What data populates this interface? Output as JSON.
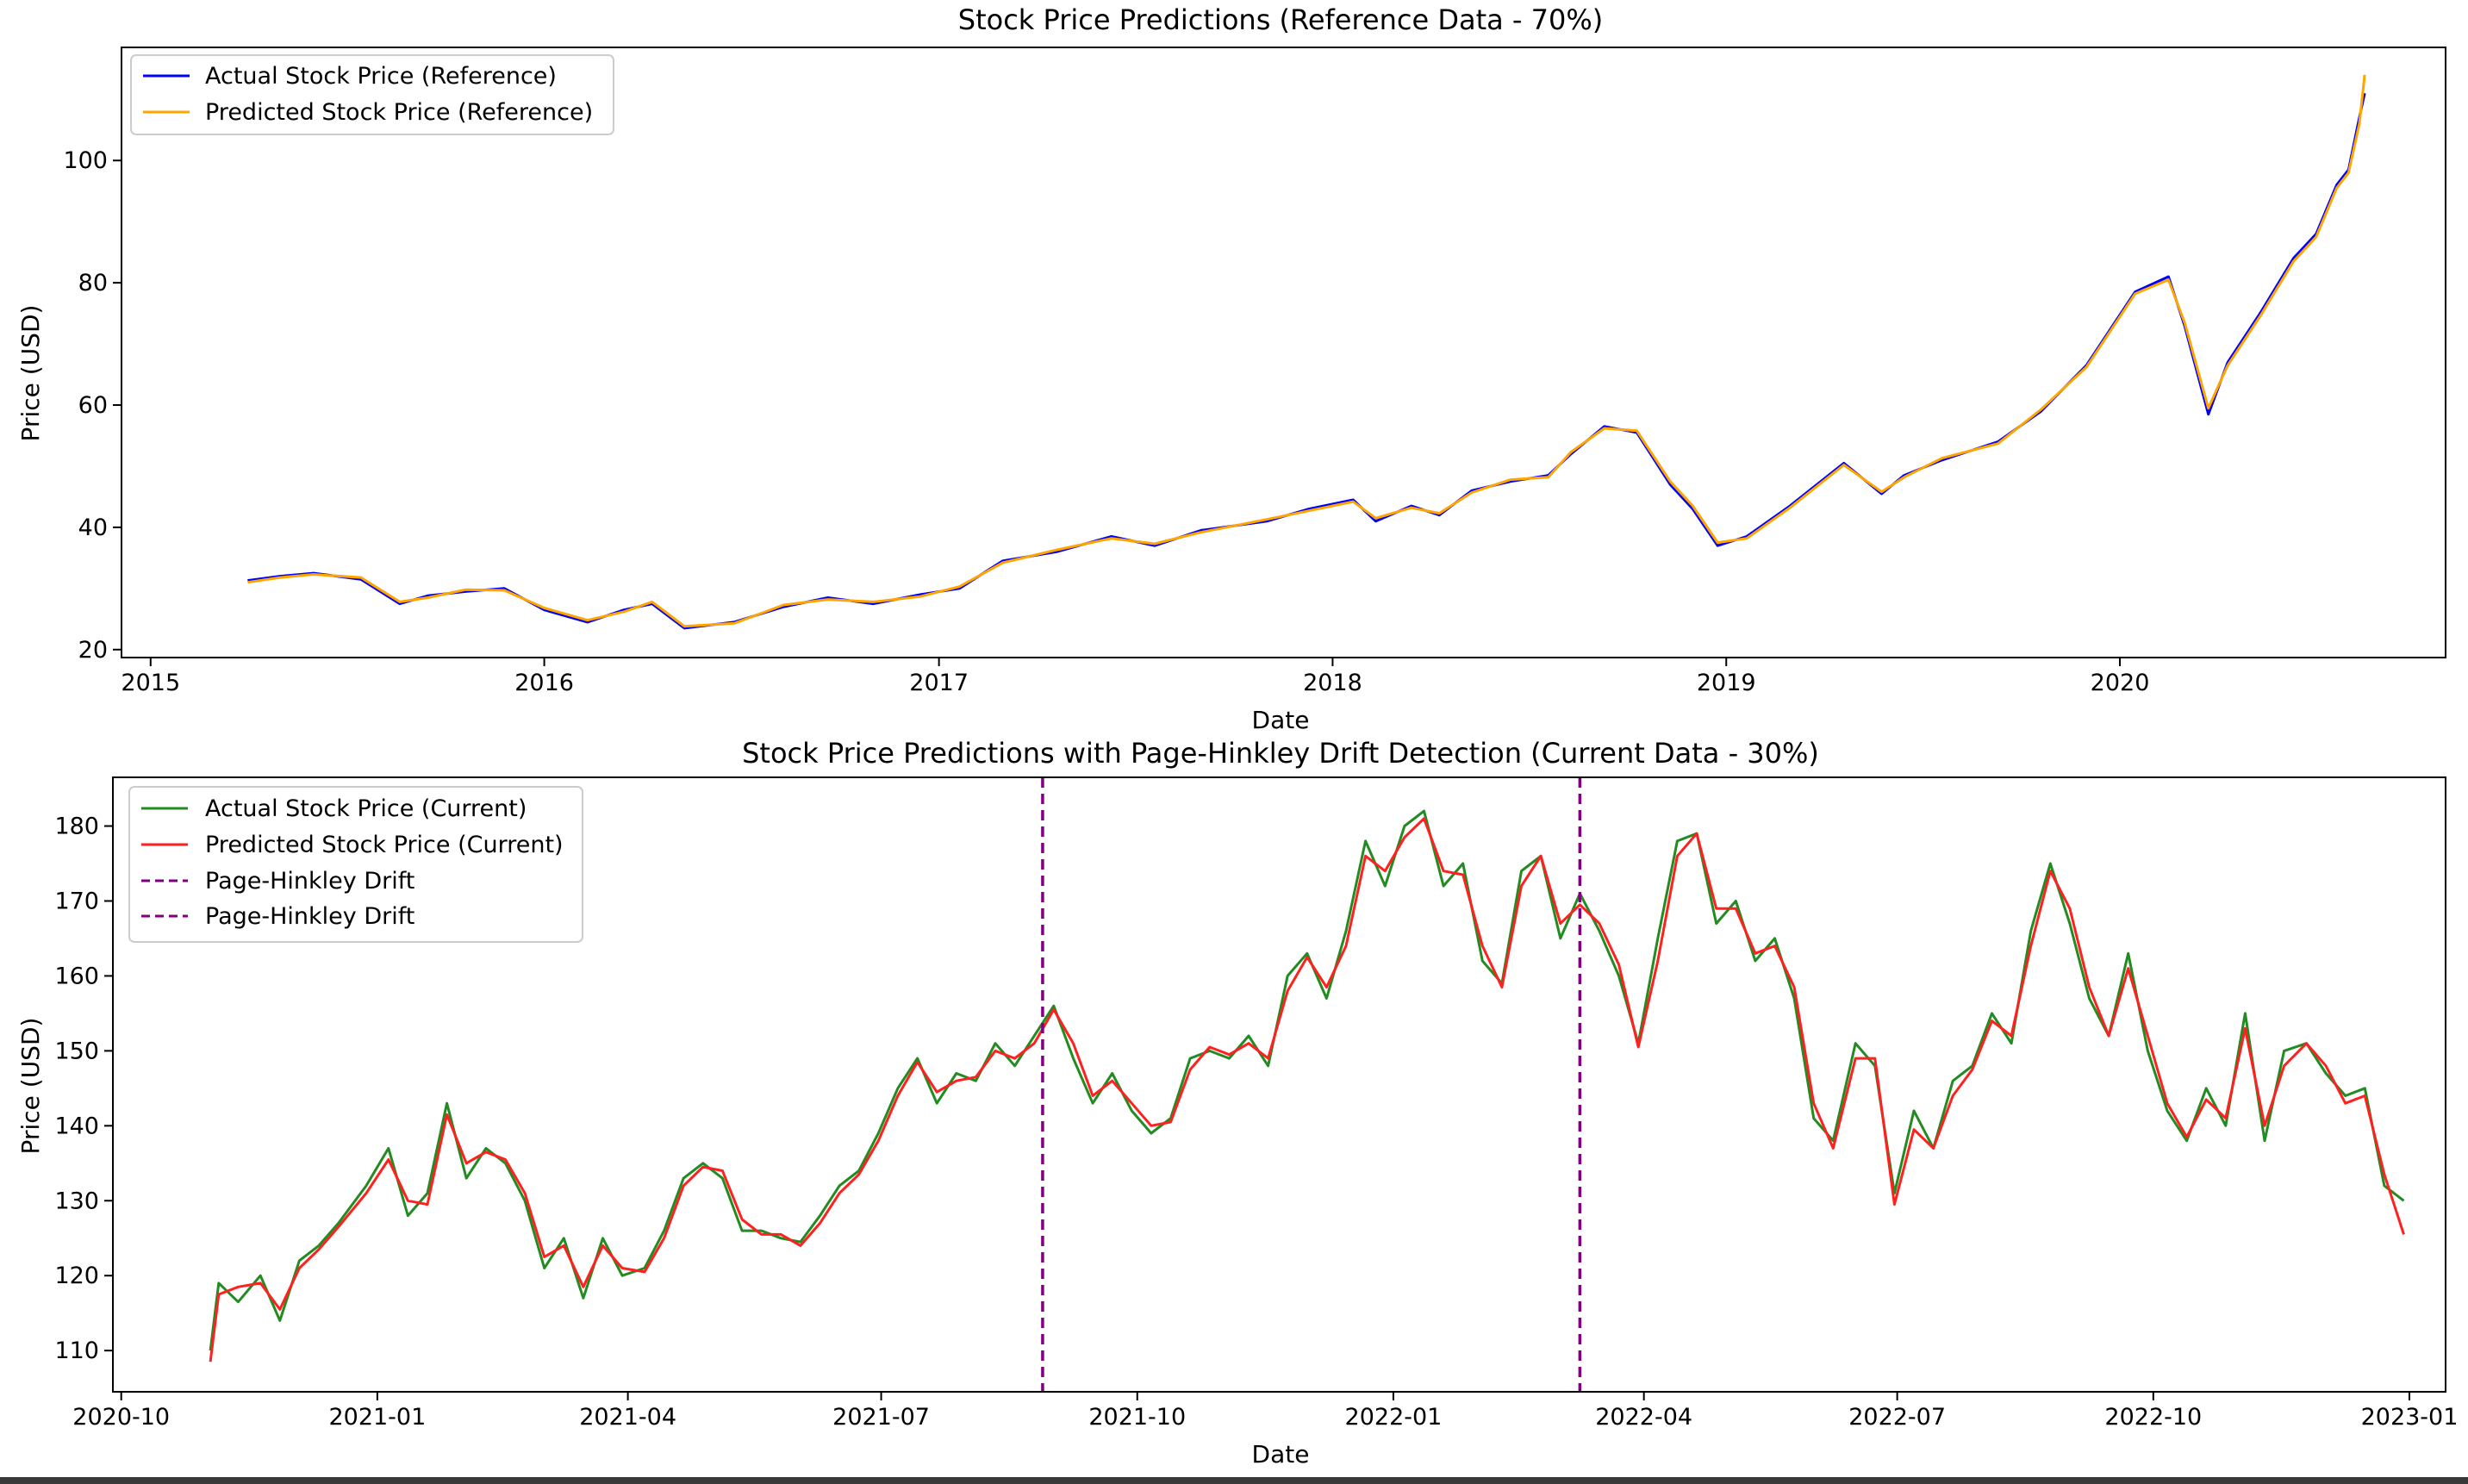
{
  "chart_data": [
    {
      "type": "line",
      "title": "Stock Price Predictions (Reference Data - 70%)",
      "xlabel": "Date",
      "ylabel": "Price (USD)",
      "x_scale": "date",
      "xlim": [
        "2014-12-05",
        "2020-10-29"
      ],
      "ylim": [
        18.7,
        118.5
      ],
      "x_ticks": [
        "2015-01-01",
        "2016-01-01",
        "2017-01-01",
        "2018-01-01",
        "2019-01-01",
        "2020-01-01"
      ],
      "x_tick_labels": [
        "2015",
        "2016",
        "2017",
        "2018",
        "2019",
        "2020"
      ],
      "y_ticks": [
        20,
        40,
        60,
        80,
        100
      ],
      "y_tick_labels": [
        "20",
        "40",
        "60",
        "80",
        "100"
      ],
      "grid": false,
      "legend_position": "upper-left",
      "series": [
        {
          "name": "Actual Stock Price (Reference)",
          "color": "#0000ff",
          "x": [
            "2015-04-01",
            "2015-05-01",
            "2015-06-01",
            "2015-07-15",
            "2015-08-20",
            "2015-09-15",
            "2015-10-20",
            "2015-11-25",
            "2016-01-01",
            "2016-02-10",
            "2016-03-15",
            "2016-04-10",
            "2016-05-10",
            "2016-06-25",
            "2016-08-10",
            "2016-09-20",
            "2016-11-01",
            "2016-12-15",
            "2017-01-20",
            "2017-03-01",
            "2017-04-20",
            "2017-06-10",
            "2017-07-20",
            "2017-09-01",
            "2017-11-01",
            "2017-12-10",
            "2018-01-20",
            "2018-02-10",
            "2018-03-15",
            "2018-04-10",
            "2018-05-10",
            "2018-06-15",
            "2018-07-20",
            "2018-08-10",
            "2018-09-10",
            "2018-10-10",
            "2018-11-10",
            "2018-12-01",
            "2018-12-24",
            "2019-01-20",
            "2019-03-01",
            "2019-04-20",
            "2019-05-25",
            "2019-06-15",
            "2019-07-20",
            "2019-09-10",
            "2019-10-20",
            "2019-12-01",
            "2020-01-15",
            "2020-02-15",
            "2020-03-01",
            "2020-03-23",
            "2020-04-10",
            "2020-05-10",
            "2020-06-10",
            "2020-07-01",
            "2020-07-20",
            "2020-07-31",
            "2020-08-10",
            "2020-08-15"
          ],
          "values": [
            31.3,
            32.0,
            32.5,
            31.5,
            27.5,
            28.8,
            29.5,
            30.0,
            26.5,
            24.5,
            26.5,
            27.5,
            23.5,
            24.5,
            27.0,
            28.5,
            27.5,
            29.0,
            30.0,
            34.5,
            36.0,
            38.5,
            37.0,
            39.5,
            41.0,
            43.0,
            44.5,
            41.0,
            43.5,
            42.0,
            46.0,
            47.5,
            48.5,
            52.0,
            56.5,
            55.5,
            47.0,
            43.0,
            37.0,
            38.5,
            43.5,
            50.5,
            45.5,
            48.5,
            51.0,
            54.0,
            59.0,
            66.5,
            78.5,
            81.0,
            73.0,
            58.5,
            67.0,
            75.0,
            84.0,
            88.0,
            96.0,
            98.5,
            107.0,
            111.0
          ]
        },
        {
          "name": "Predicted Stock Price (Reference)",
          "color": "#ffa500",
          "x": [
            "2015-04-01",
            "2015-05-01",
            "2015-06-01",
            "2015-07-15",
            "2015-08-20",
            "2015-09-15",
            "2015-10-20",
            "2015-11-25",
            "2016-01-01",
            "2016-02-10",
            "2016-03-15",
            "2016-04-10",
            "2016-05-10",
            "2016-06-25",
            "2016-08-10",
            "2016-09-20",
            "2016-11-01",
            "2016-12-15",
            "2017-01-20",
            "2017-03-01",
            "2017-04-20",
            "2017-06-10",
            "2017-07-20",
            "2017-09-01",
            "2017-11-01",
            "2017-12-10",
            "2018-01-20",
            "2018-02-10",
            "2018-03-15",
            "2018-04-10",
            "2018-05-10",
            "2018-06-15",
            "2018-07-20",
            "2018-08-10",
            "2018-09-10",
            "2018-10-10",
            "2018-11-10",
            "2018-12-01",
            "2018-12-24",
            "2019-01-20",
            "2019-03-01",
            "2019-04-20",
            "2019-05-25",
            "2019-06-15",
            "2019-07-20",
            "2019-09-10",
            "2019-10-20",
            "2019-12-01",
            "2020-01-15",
            "2020-02-15",
            "2020-03-01",
            "2020-03-23",
            "2020-04-10",
            "2020-05-10",
            "2020-06-10",
            "2020-07-01",
            "2020-07-20",
            "2020-07-31",
            "2020-08-10",
            "2020-08-15"
          ],
          "values": [
            31.0,
            31.8,
            32.3,
            31.8,
            27.8,
            28.5,
            29.8,
            29.7,
            26.8,
            24.8,
            26.2,
            27.8,
            23.8,
            24.3,
            27.3,
            28.2,
            27.8,
            28.7,
            30.3,
            34.2,
            36.3,
            38.2,
            37.3,
            39.2,
            41.3,
            42.7,
            44.2,
            41.5,
            43.2,
            42.3,
            45.7,
            47.8,
            48.2,
            52.3,
            56.2,
            55.8,
            47.5,
            43.5,
            37.5,
            38.2,
            43.2,
            50.2,
            45.8,
            48.2,
            51.3,
            53.7,
            59.3,
            66.2,
            78.2,
            80.5,
            73.5,
            59.5,
            66.5,
            74.5,
            83.5,
            87.5,
            95.5,
            98.0,
            106.0,
            114.0
          ]
        }
      ]
    },
    {
      "type": "line",
      "title": "Stock Price Predictions with Page-Hinkley Drift Detection (Current Data - 30%)",
      "xlabel": "Date",
      "ylabel": "Price (USD)",
      "x_scale": "date",
      "xlim": [
        "2020-09-28",
        "2023-01-14"
      ],
      "ylim": [
        104.5,
        186.5
      ],
      "x_ticks": [
        "2020-10-01",
        "2021-01-01",
        "2021-04-01",
        "2021-07-01",
        "2021-10-01",
        "2022-01-01",
        "2022-04-01",
        "2022-07-01",
        "2022-10-01",
        "2023-01-01"
      ],
      "x_tick_labels": [
        "2020-10",
        "2021-01",
        "2021-04",
        "2021-07",
        "2021-10",
        "2022-01",
        "2022-04",
        "2022-07",
        "2022-10",
        "2023-01"
      ],
      "y_ticks": [
        110,
        120,
        130,
        140,
        150,
        160,
        170,
        180
      ],
      "y_tick_labels": [
        "110",
        "120",
        "130",
        "140",
        "150",
        "160",
        "170",
        "180"
      ],
      "grid": false,
      "legend_position": "upper-left",
      "series": [
        {
          "name": "Actual Stock Price (Current)",
          "color": "#228b22",
          "x": [
            "2020-11-02",
            "2020-11-05",
            "2020-11-12",
            "2020-11-20",
            "2020-11-27",
            "2020-12-04",
            "2020-12-11",
            "2020-12-18",
            "2020-12-28",
            "2021-01-05",
            "2021-01-12",
            "2021-01-19",
            "2021-01-26",
            "2021-02-02",
            "2021-02-09",
            "2021-02-16",
            "2021-02-23",
            "2021-03-02",
            "2021-03-09",
            "2021-03-16",
            "2021-03-23",
            "2021-03-30",
            "2021-04-07",
            "2021-04-14",
            "2021-04-21",
            "2021-04-28",
            "2021-05-05",
            "2021-05-12",
            "2021-05-19",
            "2021-05-26",
            "2021-06-02",
            "2021-06-09",
            "2021-06-16",
            "2021-06-23",
            "2021-06-30",
            "2021-07-07",
            "2021-07-14",
            "2021-07-21",
            "2021-07-28",
            "2021-08-04",
            "2021-08-11",
            "2021-08-18",
            "2021-08-25",
            "2021-09-01",
            "2021-09-08",
            "2021-09-15",
            "2021-09-22",
            "2021-09-29",
            "2021-10-06",
            "2021-10-13",
            "2021-10-20",
            "2021-10-27",
            "2021-11-03",
            "2021-11-10",
            "2021-11-17",
            "2021-11-24",
            "2021-12-01",
            "2021-12-08",
            "2021-12-15",
            "2021-12-22",
            "2021-12-29",
            "2022-01-05",
            "2022-01-12",
            "2022-01-19",
            "2022-01-26",
            "2022-02-02",
            "2022-02-09",
            "2022-02-16",
            "2022-02-23",
            "2022-03-02",
            "2022-03-09",
            "2022-03-16",
            "2022-03-23",
            "2022-03-30",
            "2022-04-06",
            "2022-04-13",
            "2022-04-20",
            "2022-04-27",
            "2022-05-04",
            "2022-05-11",
            "2022-05-18",
            "2022-05-25",
            "2022-06-01",
            "2022-06-08",
            "2022-06-16",
            "2022-06-23",
            "2022-06-30",
            "2022-07-07",
            "2022-07-14",
            "2022-07-21",
            "2022-07-28",
            "2022-08-04",
            "2022-08-11",
            "2022-08-18",
            "2022-08-25",
            "2022-09-01",
            "2022-09-08",
            "2022-09-15",
            "2022-09-22",
            "2022-09-29",
            "2022-10-06",
            "2022-10-13",
            "2022-10-20",
            "2022-10-27",
            "2022-11-03",
            "2022-11-10",
            "2022-11-17",
            "2022-11-25",
            "2022-12-02",
            "2022-12-09",
            "2022-12-16",
            "2022-12-23",
            "2022-12-30"
          ],
          "values": [
            110.0,
            119.0,
            116.5,
            120.0,
            114.0,
            122.0,
            124.0,
            127.0,
            132.0,
            137.0,
            128.0,
            131.0,
            143.0,
            133.0,
            137.0,
            135.0,
            130.0,
            121.0,
            125.0,
            117.0,
            125.0,
            120.0,
            121.0,
            126.0,
            133.0,
            135.0,
            133.0,
            126.0,
            126.0,
            125.0,
            124.5,
            128.0,
            132.0,
            134.0,
            139.0,
            145.0,
            149.0,
            143.0,
            147.0,
            146.0,
            151.0,
            148.0,
            152.0,
            156.0,
            149.0,
            143.0,
            147.0,
            142.0,
            139.0,
            141.0,
            149.0,
            150.0,
            149.0,
            152.0,
            148.0,
            160.0,
            163.0,
            157.0,
            166.0,
            178.0,
            172.0,
            180.0,
            182.0,
            172.0,
            175.0,
            162.0,
            159.0,
            174.0,
            176.0,
            165.0,
            171.0,
            166.0,
            160.0,
            151.0,
            165.0,
            178.0,
            179.0,
            167.0,
            170.0,
            162.0,
            165.0,
            157.0,
            141.0,
            138.0,
            151.0,
            148.0,
            131.0,
            142.0,
            137.0,
            146.0,
            148.0,
            155.0,
            151.0,
            166.0,
            175.0,
            167.0,
            157.0,
            152.0,
            163.0,
            150.0,
            142.0,
            138.0,
            145.0,
            140.0,
            155.0,
            138.0,
            150.0,
            151.0,
            147.0,
            144.0,
            145.0,
            132.0,
            130.0
          ]
        },
        {
          "name": "Predicted Stock Price (Current)",
          "color": "#ff2020",
          "x": [
            "2020-11-02",
            "2020-11-05",
            "2020-11-12",
            "2020-11-20",
            "2020-11-27",
            "2020-12-04",
            "2020-12-11",
            "2020-12-18",
            "2020-12-28",
            "2021-01-05",
            "2021-01-12",
            "2021-01-19",
            "2021-01-26",
            "2021-02-02",
            "2021-02-09",
            "2021-02-16",
            "2021-02-23",
            "2021-03-02",
            "2021-03-09",
            "2021-03-16",
            "2021-03-23",
            "2021-03-30",
            "2021-04-07",
            "2021-04-14",
            "2021-04-21",
            "2021-04-28",
            "2021-05-05",
            "2021-05-12",
            "2021-05-19",
            "2021-05-26",
            "2021-06-02",
            "2021-06-09",
            "2021-06-16",
            "2021-06-23",
            "2021-06-30",
            "2021-07-07",
            "2021-07-14",
            "2021-07-21",
            "2021-07-28",
            "2021-08-04",
            "2021-08-11",
            "2021-08-18",
            "2021-08-25",
            "2021-09-01",
            "2021-09-08",
            "2021-09-15",
            "2021-09-22",
            "2021-09-29",
            "2021-10-06",
            "2021-10-13",
            "2021-10-20",
            "2021-10-27",
            "2021-11-03",
            "2021-11-10",
            "2021-11-17",
            "2021-11-24",
            "2021-12-01",
            "2021-12-08",
            "2021-12-15",
            "2021-12-22",
            "2021-12-29",
            "2022-01-05",
            "2022-01-12",
            "2022-01-19",
            "2022-01-26",
            "2022-02-02",
            "2022-02-09",
            "2022-02-16",
            "2022-02-23",
            "2022-03-02",
            "2022-03-09",
            "2022-03-16",
            "2022-03-23",
            "2022-03-30",
            "2022-04-06",
            "2022-04-13",
            "2022-04-20",
            "2022-04-27",
            "2022-05-04",
            "2022-05-11",
            "2022-05-18",
            "2022-05-25",
            "2022-06-01",
            "2022-06-08",
            "2022-06-16",
            "2022-06-23",
            "2022-06-30",
            "2022-07-07",
            "2022-07-14",
            "2022-07-21",
            "2022-07-28",
            "2022-08-04",
            "2022-08-11",
            "2022-08-18",
            "2022-08-25",
            "2022-09-01",
            "2022-09-08",
            "2022-09-15",
            "2022-09-22",
            "2022-09-29",
            "2022-10-06",
            "2022-10-13",
            "2022-10-20",
            "2022-10-27",
            "2022-11-03",
            "2022-11-10",
            "2022-11-17",
            "2022-11-25",
            "2022-12-02",
            "2022-12-09",
            "2022-12-16",
            "2022-12-23",
            "2022-12-30"
          ],
          "values": [
            108.5,
            117.5,
            118.5,
            119.0,
            115.5,
            121.0,
            123.5,
            126.5,
            131.0,
            135.5,
            130.0,
            129.5,
            141.5,
            135.0,
            136.5,
            135.5,
            131.0,
            122.5,
            124.0,
            118.5,
            124.0,
            121.0,
            120.5,
            125.0,
            132.0,
            134.5,
            134.0,
            127.5,
            125.5,
            125.5,
            124.0,
            127.0,
            131.0,
            133.5,
            138.0,
            144.0,
            148.5,
            144.5,
            146.0,
            146.5,
            150.0,
            149.0,
            151.0,
            155.5,
            151.0,
            144.0,
            146.0,
            143.0,
            140.0,
            140.5,
            147.5,
            150.5,
            149.5,
            151.0,
            149.0,
            158.0,
            162.5,
            158.5,
            164.0,
            176.0,
            174.0,
            178.5,
            181.0,
            174.0,
            173.5,
            164.0,
            158.5,
            172.0,
            176.0,
            167.0,
            169.5,
            167.0,
            161.5,
            150.5,
            162.0,
            176.0,
            179.0,
            169.0,
            169.0,
            163.0,
            164.0,
            158.5,
            143.0,
            137.0,
            149.0,
            149.0,
            129.5,
            139.5,
            137.0,
            144.0,
            147.5,
            154.0,
            152.0,
            164.0,
            174.0,
            169.0,
            158.5,
            152.0,
            161.0,
            152.0,
            143.0,
            138.5,
            143.5,
            141.0,
            153.0,
            140.0,
            148.0,
            151.0,
            148.0,
            143.0,
            144.0,
            133.5,
            125.5
          ]
        },
        {
          "name": "Page-Hinkley Drift",
          "color": "#800080",
          "style": "dashed",
          "type": "vline",
          "x": "2021-08-28"
        },
        {
          "name": "Page-Hinkley Drift",
          "color": "#800080",
          "style": "dashed",
          "type": "vline",
          "x": "2022-03-09"
        }
      ]
    }
  ]
}
